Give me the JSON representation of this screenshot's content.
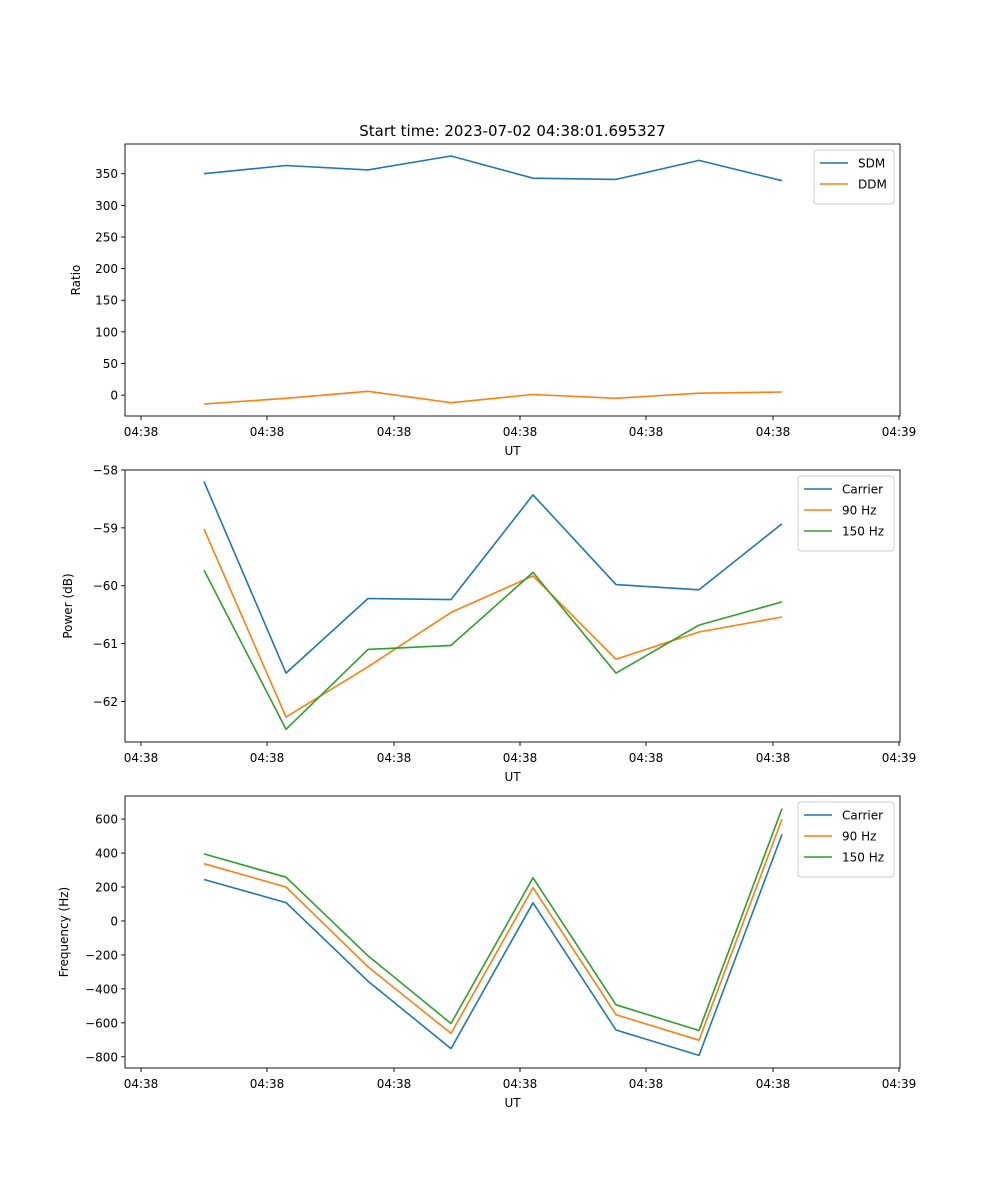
{
  "figure_title": "Start time: 2023-07-02 04:38:01.695327",
  "colors": {
    "c0": "#1f77b4",
    "c1": "#ff7f0e",
    "c2": "#2ca02c"
  },
  "chart_data": [
    {
      "type": "line",
      "title": "Start time: 2023-07-02 04:38:01.695327",
      "xlabel": "UT",
      "ylabel": "Ratio",
      "x_tick_labels": [
        "04:38",
        "04:38",
        "04:38",
        "04:38",
        "04:38",
        "04:38",
        "04:39"
      ],
      "y_ticks": [
        0,
        50,
        100,
        150,
        200,
        250,
        300,
        350
      ],
      "y_tick_labels": [
        "0",
        "50",
        "100",
        "150",
        "200",
        "250",
        "300",
        "350"
      ],
      "ylim": [
        -33,
        397
      ],
      "legend_position": "top-right",
      "series": [
        {
          "name": "SDM",
          "color": "#1f77b4",
          "values": [
            350,
            363,
            356,
            378,
            343,
            341,
            371,
            339
          ]
        },
        {
          "name": "DDM",
          "color": "#ff7f0e",
          "values": [
            -14,
            -5,
            6,
            -12,
            1,
            -5,
            3,
            5
          ]
        }
      ]
    },
    {
      "type": "line",
      "title": "",
      "xlabel": "UT",
      "ylabel": "Power (dB)",
      "x_tick_labels": [
        "04:38",
        "04:38",
        "04:38",
        "04:38",
        "04:38",
        "04:38",
        "04:39"
      ],
      "y_ticks": [
        -62,
        -61,
        -60,
        -59,
        -58
      ],
      "y_tick_labels": [
        "−62",
        "−61",
        "−60",
        "−59",
        "−58"
      ],
      "ylim": [
        -62.7,
        -58
      ],
      "legend_position": "top-right",
      "series": [
        {
          "name": "Carrier",
          "color": "#1f77b4",
          "values": [
            -58.2,
            -61.51,
            -60.22,
            -60.24,
            -58.43,
            -59.98,
            -60.07,
            -58.93
          ]
        },
        {
          "name": "90 Hz",
          "color": "#ff7f0e",
          "values": [
            -59.02,
            -62.27,
            -61.4,
            -60.46,
            -59.83,
            -61.27,
            -60.8,
            -60.54
          ]
        },
        {
          "name": "150 Hz",
          "color": "#2ca02c",
          "values": [
            -59.73,
            -62.48,
            -61.1,
            -61.03,
            -59.77,
            -61.51,
            -60.68,
            -60.28
          ]
        }
      ]
    },
    {
      "type": "line",
      "title": "",
      "xlabel": "UT",
      "ylabel": "Frequency (Hz)",
      "x_tick_labels": [
        "04:38",
        "04:38",
        "04:38",
        "04:38",
        "04:38",
        "04:38",
        "04:39"
      ],
      "y_ticks": [
        -800,
        -600,
        -400,
        -200,
        0,
        200,
        400,
        600
      ],
      "y_tick_labels": [
        "−800",
        "−600",
        "−400",
        "−200",
        "0",
        "200",
        "400",
        "600"
      ],
      "ylim": [
        -866,
        736
      ],
      "legend_position": "top-right",
      "series": [
        {
          "name": "Carrier",
          "color": "#1f77b4",
          "values": [
            244,
            108,
            -355,
            -752,
            107,
            -642,
            -792,
            510
          ]
        },
        {
          "name": "90 Hz",
          "color": "#ff7f0e",
          "values": [
            337,
            200,
            -270,
            -662,
            196,
            -552,
            -702,
            600
          ]
        },
        {
          "name": "150 Hz",
          "color": "#2ca02c",
          "values": [
            395,
            258,
            -205,
            -604,
            254,
            -494,
            -645,
            662
          ]
        }
      ]
    }
  ]
}
